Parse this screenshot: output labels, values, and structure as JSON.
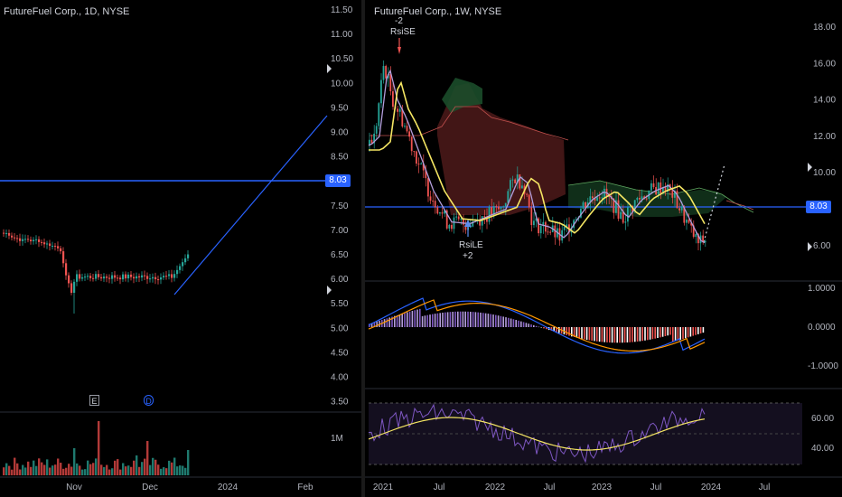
{
  "left_chart": {
    "title": "FutureFuel Corp., 1D, NYSE",
    "price_axis": [
      "11.50",
      "11.00",
      "10.50",
      "10.00",
      "9.50",
      "9.00",
      "8.50",
      "8.00",
      "7.50",
      "7.00",
      "6.50",
      "6.00",
      "5.50",
      "5.00",
      "4.50",
      "4.00",
      "3.50"
    ],
    "volume_axis": [
      "1M"
    ],
    "time_axis": [
      "Nov",
      "Dec",
      "2024",
      "Feb"
    ],
    "hline_value": "8.03",
    "events": [
      "E",
      "D"
    ],
    "colors": {
      "up": "#26a69a",
      "down": "#ef5350",
      "hline": "#2962ff",
      "trend": "#2962ff",
      "vol_up": "#1f7a6f",
      "vol_down": "#b23a38"
    }
  },
  "right_chart": {
    "title": "FutureFuel Corp., 1W, NYSE",
    "price_axis": [
      "18.00",
      "16.00",
      "14.00",
      "12.00",
      "10.00",
      "8.00",
      "6.00"
    ],
    "hline_value": "8.03",
    "annotations": {
      "rsi_se_count": "-2",
      "rsi_se": "RsiSE",
      "rsi_le": "RsiLE",
      "rsi_le_count": "+2"
    },
    "macd_axis": [
      "1.0000",
      "0.0000",
      "-1.0000"
    ],
    "rsi_axis": [
      "60.00",
      "40.00"
    ],
    "time_axis": [
      "2021",
      "Jul",
      "2022",
      "Jul",
      "2023",
      "Jul",
      "2024",
      "Jul"
    ],
    "colors": {
      "macd_line": "#2962ff",
      "signal_line": "#ff9800",
      "rsi": "#7e57c2",
      "rsi_ma": "#f5e663",
      "ma_yellow": "#f5e663",
      "ma_purple": "#b39ddb",
      "cloud_green": "#1b4d2a",
      "cloud_red": "#4d1a1a"
    }
  }
}
